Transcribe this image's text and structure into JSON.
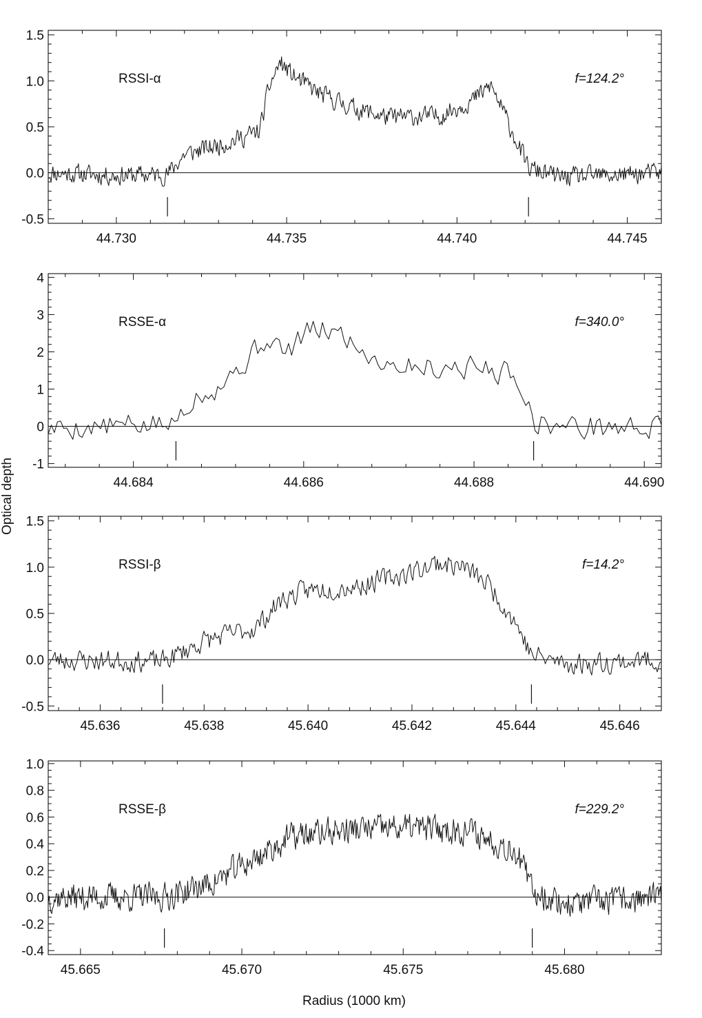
{
  "figure": {
    "y_axis_title": "Optical depth",
    "x_axis_title": "Radius (1000 km)"
  },
  "chart_data": [
    {
      "type": "line",
      "panel_label": "RSSI-α",
      "phase_label": "f=124.2°",
      "xlim": [
        44.728,
        44.746
      ],
      "ylim": [
        -0.55,
        1.55
      ],
      "x_ticks": [
        44.73,
        44.735,
        44.74,
        44.745
      ],
      "x_tick_labels": [
        "44.730",
        "44.735",
        "44.740",
        "44.745"
      ],
      "y_ticks": [
        -0.5,
        0.0,
        0.5,
        1.0,
        1.5
      ],
      "y_tick_labels": [
        "-0.5",
        "0.0",
        "0.5",
        "1.0",
        "1.5"
      ],
      "edge_markers": [
        44.7315,
        44.7421
      ],
      "profile": {
        "x": [
          44.728,
          44.73,
          44.7315,
          44.732,
          44.733,
          44.7342,
          44.7345,
          44.7348,
          44.7352,
          44.736,
          44.737,
          44.738,
          44.7395,
          44.7405,
          44.741,
          44.7415,
          44.7421,
          44.743,
          44.7445,
          44.746
        ],
        "y": [
          0.0,
          -0.03,
          -0.02,
          0.2,
          0.3,
          0.45,
          0.95,
          1.2,
          1.05,
          0.85,
          0.7,
          0.6,
          0.62,
          0.8,
          0.95,
          0.55,
          0.05,
          -0.05,
          -0.03,
          0.0
        ],
        "noise": 0.09,
        "points": 650,
        "seed": 11
      }
    },
    {
      "type": "line",
      "panel_label": "RSSE-α",
      "phase_label": "f=340.0°",
      "xlim": [
        44.683,
        44.6902
      ],
      "ylim": [
        -1.1,
        4.1
      ],
      "x_ticks": [
        44.684,
        44.686,
        44.688,
        44.69
      ],
      "x_tick_labels": [
        "44.684",
        "44.686",
        "44.688",
        "44.690"
      ],
      "y_ticks": [
        -1,
        0,
        1,
        2,
        3,
        4
      ],
      "y_tick_labels": [
        "-1",
        "0",
        "1",
        "2",
        "3",
        "4"
      ],
      "edge_markers": [
        44.6845,
        44.6887
      ],
      "profile": {
        "x": [
          44.683,
          44.6845,
          44.68455,
          44.6847,
          44.685,
          44.6853,
          44.6856,
          44.6858,
          44.686,
          44.6863,
          44.6865,
          44.6867,
          44.687,
          44.6875,
          44.688,
          44.6885,
          44.6886,
          44.6887,
          44.689,
          44.6902
        ],
        "y": [
          -0.05,
          0.05,
          0.4,
          0.8,
          1.1,
          1.7,
          2.4,
          1.9,
          2.5,
          2.6,
          2.4,
          2.0,
          1.7,
          1.6,
          1.6,
          1.4,
          0.8,
          0.15,
          0.0,
          -0.05
        ],
        "noise": 0.28,
        "points": 200,
        "seed": 5
      }
    },
    {
      "type": "line",
      "panel_label": "RSSI-β",
      "phase_label": "f=14.2°",
      "xlim": [
        45.635,
        45.6468
      ],
      "ylim": [
        -0.55,
        1.55
      ],
      "x_ticks": [
        45.636,
        45.638,
        45.64,
        45.642,
        45.644,
        45.646
      ],
      "x_tick_labels": [
        "45.636",
        "45.638",
        "45.640",
        "45.642",
        "45.644",
        "45.646"
      ],
      "y_ticks": [
        -0.5,
        0.0,
        0.5,
        1.0,
        1.5
      ],
      "y_tick_labels": [
        "-0.5",
        "0.0",
        "0.5",
        "1.0",
        "1.5"
      ],
      "edge_markers": [
        45.6372,
        45.6443
      ],
      "profile": {
        "x": [
          45.635,
          45.6372,
          45.638,
          45.639,
          45.6395,
          45.64,
          45.641,
          45.642,
          45.6425,
          45.643,
          45.6435,
          45.644,
          45.6443,
          45.645,
          45.6468
        ],
        "y": [
          0.0,
          -0.02,
          0.2,
          0.35,
          0.65,
          0.75,
          0.8,
          0.95,
          1.05,
          1.0,
          0.8,
          0.4,
          0.05,
          -0.05,
          0.0
        ],
        "noise": 0.1,
        "points": 450,
        "seed": 23
      }
    },
    {
      "type": "line",
      "panel_label": "RSSE-β",
      "phase_label": "f=229.2°",
      "xlim": [
        45.664,
        45.683
      ],
      "ylim": [
        -0.43,
        1.02
      ],
      "x_ticks": [
        45.665,
        45.67,
        45.675,
        45.68
      ],
      "x_tick_labels": [
        "45.665",
        "45.670",
        "45.675",
        "45.680"
      ],
      "y_ticks": [
        -0.4,
        -0.2,
        0.0,
        0.2,
        0.4,
        0.6,
        0.8,
        1.0
      ],
      "y_tick_labels": [
        "-0.4",
        "-0.2",
        "0.0",
        "0.2",
        "0.4",
        "0.6",
        "0.8",
        "1.0"
      ],
      "edge_markers": [
        45.6676,
        45.679
      ],
      "profile": {
        "x": [
          45.664,
          45.6676,
          45.669,
          45.6705,
          45.6715,
          45.673,
          45.675,
          45.677,
          45.6785,
          45.679,
          45.68,
          45.683
        ],
        "y": [
          0.0,
          0.0,
          0.1,
          0.3,
          0.45,
          0.5,
          0.52,
          0.5,
          0.35,
          0.05,
          -0.05,
          0.0
        ],
        "noise": 0.09,
        "points": 700,
        "seed": 37
      }
    }
  ]
}
